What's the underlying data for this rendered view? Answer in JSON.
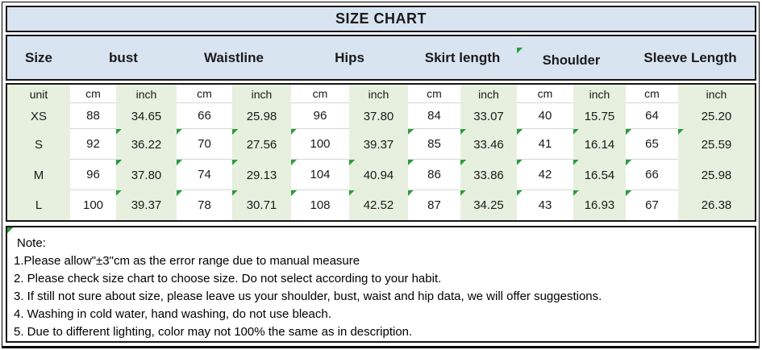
{
  "title": "SIZE CHART",
  "header": {
    "columns": [
      {
        "label": "Size",
        "indicator": false
      },
      {
        "label": "bust",
        "indicator": false
      },
      {
        "label": "Waistline",
        "indicator": false
      },
      {
        "label": "Hips",
        "indicator": false
      },
      {
        "label": "Skirt length",
        "indicator": false
      },
      {
        "label": "Shoulder",
        "indicator": true
      },
      {
        "label": "Sleeve Length",
        "indicator": false
      }
    ]
  },
  "table": {
    "unit_row": [
      "unit",
      "cm",
      "inch",
      "cm",
      "inch",
      "cm",
      "inch",
      "cm",
      "inch",
      "cm",
      "inch",
      "cm",
      "inch"
    ],
    "size_rows": [
      {
        "size": "XS",
        "values": [
          "88",
          "34.65",
          "66",
          "25.98",
          "96",
          "37.80",
          "84",
          "33.07",
          "40",
          "15.75",
          "64",
          "25.20"
        ],
        "indicator_cols": []
      },
      {
        "size": "S",
        "values": [
          "92",
          "36.22",
          "70",
          "27.56",
          "100",
          "39.37",
          "85",
          "33.46",
          "41",
          "16.14",
          "65",
          "25.59"
        ],
        "indicator_cols": [
          2,
          3,
          4,
          5,
          7,
          8,
          9,
          10,
          11,
          12
        ]
      },
      {
        "size": "M",
        "values": [
          "96",
          "37.80",
          "74",
          "29.13",
          "104",
          "40.94",
          "86",
          "33.86",
          "42",
          "16.54",
          "66",
          "25.98"
        ],
        "indicator_cols": [
          2,
          3,
          4,
          5,
          6,
          7,
          8,
          9,
          10,
          11
        ]
      },
      {
        "size": "L",
        "values": [
          "100",
          "39.37",
          "78",
          "30.71",
          "108",
          "42.52",
          "87",
          "34.25",
          "43",
          "16.93",
          "67",
          "26.38"
        ],
        "indicator_cols": [
          2,
          3,
          4,
          5,
          6,
          7,
          8,
          9,
          10,
          11
        ]
      }
    ]
  },
  "notes": {
    "heading": "Note:",
    "has_indicator": true,
    "items": [
      "1.Please allow\"±3\"cm as the error range due to manual measure",
      "2. Please check size chart to choose size. Do not select according to your habit.",
      "3. If still not sure about size, please leave us your shoulder, bust, waist and hip data, we will offer suggestions.",
      "4. Washing in cold water, hand washing, do not use bleach.",
      "5. Due to different lighting, color may not 100% the same as in description."
    ]
  },
  "colors": {
    "header_bg": "#d9e4f1",
    "accent_green_bg": "#e7f0de",
    "indicator_green": "#2c9c3e",
    "border_dark": "#161616"
  },
  "icons": {
    "cell_flag": "error-indicator-triangle"
  }
}
